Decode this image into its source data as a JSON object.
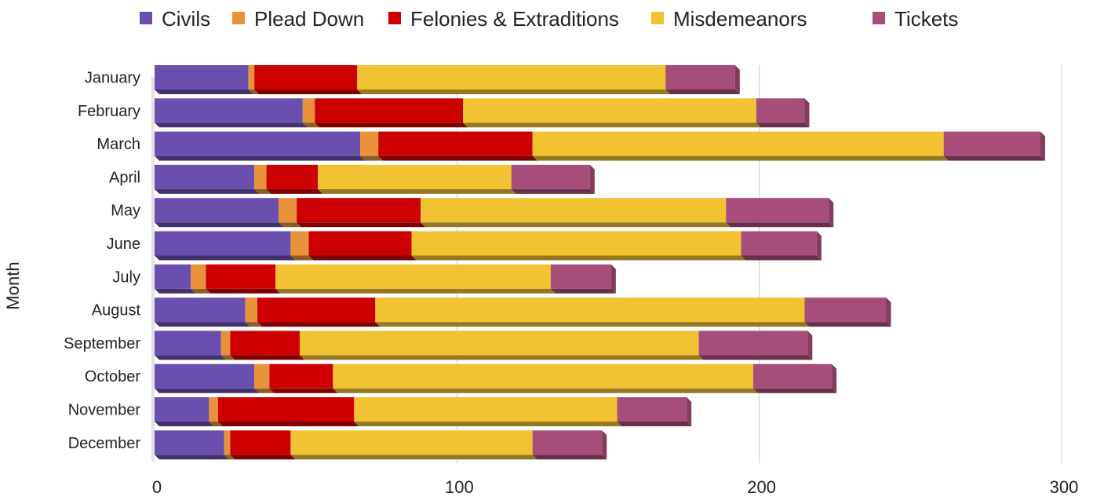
{
  "chart_data": {
    "type": "bar",
    "orientation": "horizontal",
    "stacked": true,
    "style": "3d",
    "ylabel": "Month",
    "xlabel": "",
    "xlim": [
      0,
      300
    ],
    "x_ticks": [
      0,
      100,
      200,
      300
    ],
    "grid": true,
    "legend_position": "top",
    "categories": [
      "January",
      "February",
      "March",
      "April",
      "May",
      "June",
      "July",
      "August",
      "September",
      "October",
      "November",
      "December"
    ],
    "series": [
      {
        "name": "Civils",
        "color": "#6a4fae",
        "values": [
          31,
          49,
          68,
          33,
          41,
          45,
          12,
          30,
          22,
          33,
          18,
          23
        ]
      },
      {
        "name": "Plead Down",
        "color": "#e8923a",
        "values": [
          2,
          4,
          6,
          4,
          6,
          6,
          5,
          4,
          3,
          5,
          3,
          2
        ]
      },
      {
        "name": "Felonies & Extraditions",
        "color": "#cc0000",
        "values": [
          34,
          49,
          51,
          17,
          41,
          34,
          23,
          39,
          23,
          21,
          45,
          20
        ]
      },
      {
        "name": "Misdemeanors",
        "color": "#f1c232",
        "values": [
          102,
          97,
          136,
          64,
          101,
          109,
          91,
          142,
          132,
          139,
          87,
          80
        ]
      },
      {
        "name": "Tickets",
        "color": "#a64d79",
        "values": [
          23,
          16,
          32,
          26,
          34,
          25,
          20,
          27,
          36,
          26,
          23,
          23
        ]
      }
    ]
  }
}
